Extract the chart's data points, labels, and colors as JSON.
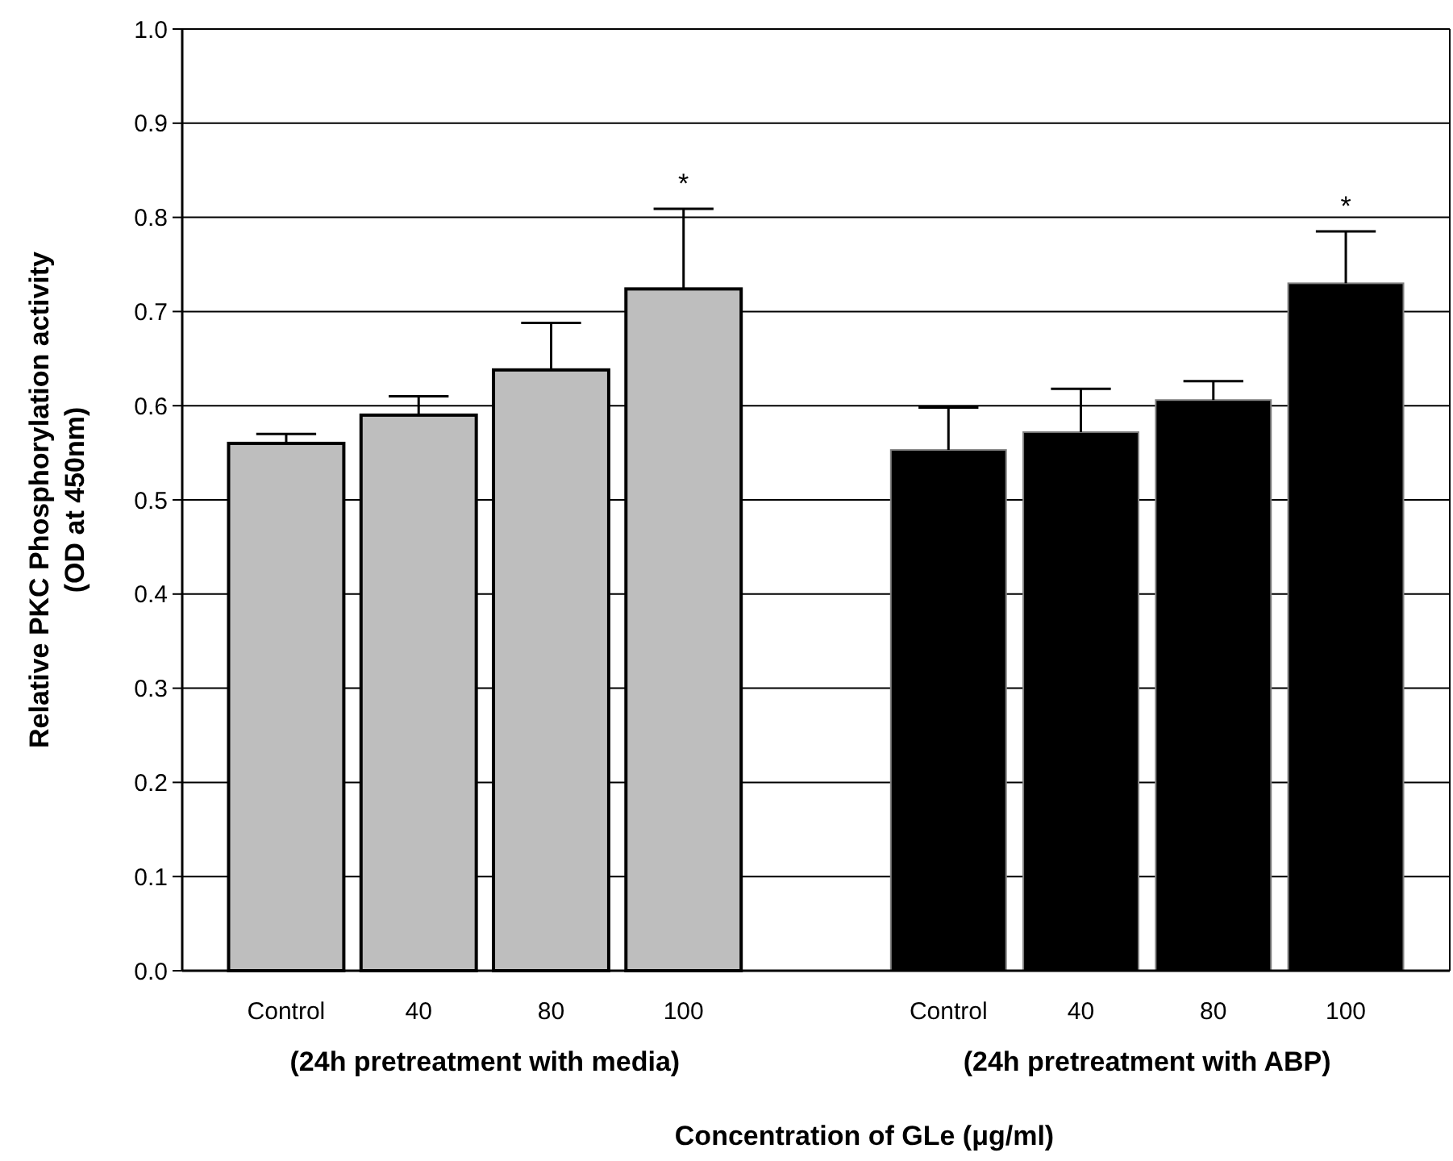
{
  "chart_data": {
    "type": "bar",
    "xlabel": "Concentration of GLe (μg/ml)",
    "ylabel": "Relative PKC Phosphorylation activity\n(OD at 450nm)",
    "categories": [
      "Control",
      "40",
      "80",
      "100",
      null,
      "Control",
      "40",
      "80",
      "100"
    ],
    "series": [
      {
        "color": "#bebebe",
        "values": [
          0.56,
          0.59,
          0.638,
          0.724,
          null,
          null,
          null,
          null,
          null
        ],
        "errors": [
          [
            0.56,
            0.57
          ],
          [
            0.59,
            0.61
          ],
          [
            0.638,
            0.688
          ],
          [
            0.724,
            0.809
          ],
          null,
          null,
          null,
          null,
          null
        ]
      },
      {
        "color": "#000000",
        "values": [
          null,
          null,
          null,
          null,
          null,
          0.553,
          0.572,
          0.606,
          0.73
        ],
        "errors": [
          null,
          null,
          null,
          null,
          null,
          [
            0.553,
            0.598
          ],
          [
            0.572,
            0.618
          ],
          [
            0.606,
            0.626
          ],
          [
            0.73,
            0.785
          ]
        ]
      }
    ],
    "ylim": [
      0,
      1
    ],
    "yticks": [
      {
        "value": 0,
        "label": "0.0"
      },
      0.1,
      0.2,
      0.3,
      0.4,
      0.5,
      0.6,
      0.7,
      0.8,
      0.9,
      {
        "value": 1,
        "label": "1.0"
      }
    ],
    "grid": "y",
    "annotations": [
      "*",
      "*",
      "(24h pretreatment with media)",
      "(24h pretreatment with ABP)"
    ]
  }
}
